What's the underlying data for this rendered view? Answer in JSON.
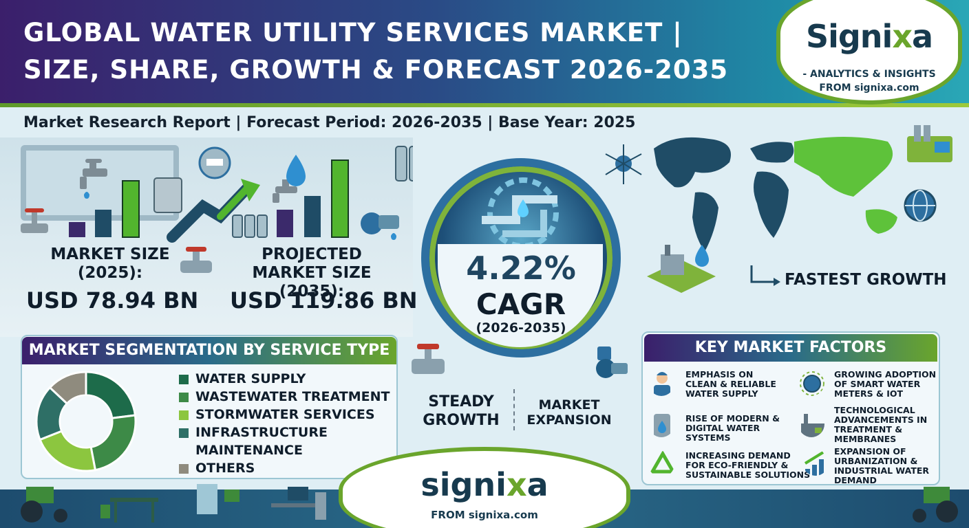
{
  "header": {
    "title_line1": "GLOBAL WATER UTILITY SERVICES MARKET |",
    "title_line2": "SIZE, SHARE, GROWTH & FORECAST 2026-2035"
  },
  "brand": {
    "logo_prefix": "Signi",
    "logo_x": "x",
    "logo_suffix": "a",
    "tagline1": "- ANALYTICS & INSIGHTS",
    "tagline2": "FROM signixa.com"
  },
  "subheader": "Market Research Report |  Forecast Period: 2026-2035  |  Base Year: 2025",
  "market_size": {
    "label_line1": "MARKET SIZE",
    "label_line2": "(2025):",
    "value": "USD 78.94 BN"
  },
  "projected": {
    "label_line1": "PROJECTED",
    "label_line2": "MARKET SIZE (2035):",
    "value": "USD 119.86 BN"
  },
  "cagr": {
    "value": "4.22%",
    "label": "CAGR",
    "period": "(2026-2035)"
  },
  "steady": {
    "line1": "STEADY",
    "line2": "GROWTH"
  },
  "expansion": {
    "line1": "MARKET",
    "line2": "EXPANSION"
  },
  "map": {
    "fastest": "FASTEST GROWTH"
  },
  "segmentation": {
    "title": "MARKET SEGMENTATION BY SERVICE TYPE",
    "items": [
      {
        "label": "WATER SUPPLY",
        "color": "#1d6b4a",
        "share": 0.23
      },
      {
        "label": "WASTEWATER TREATMENT",
        "color": "#3d8a47",
        "share": 0.24
      },
      {
        "label": "STORMWATER SERVICES",
        "color": "#8cc63f",
        "share": 0.22
      },
      {
        "label": "INFRASTRUCTURE",
        "label2": "MAINTENANCE",
        "color": "#2e6f66",
        "share": 0.18
      },
      {
        "label": "OTHERS",
        "color": "#8f8b7e",
        "share": 0.13
      }
    ]
  },
  "key_factors": {
    "title": "KEY MARKET FACTORS",
    "items": [
      {
        "l1": "EMPHASIS ON",
        "l2": "CLEAN & RELIABLE",
        "l3": "WATER SUPPLY",
        "icon": "worker-icon"
      },
      {
        "l1": "GROWING ADOPTION",
        "l2": "OF SMART WATER",
        "l3": "METERS & IOT",
        "icon": "globe-network-icon"
      },
      {
        "l1": "RISE OF MODERN &",
        "l2": "DIGITAL WATER",
        "l3": "SYSTEMS",
        "icon": "water-tank-icon"
      },
      {
        "l1": "TECHNOLOGICAL",
        "l2": "ADVANCEMENTS IN",
        "l3": "TREATMENT &",
        "l4": "MEMBRANES",
        "icon": "factory-icon"
      },
      {
        "l1": "INCREASING DEMAND",
        "l2": "FOR ECO-FRIENDLY &",
        "l3": "SUSTAINABLE SOLUTIONS",
        "icon": "recycle-icon"
      },
      {
        "l1": "EXPANSION OF",
        "l2": "URBANIZATION &",
        "l3": "INDUSTRIAL WATER",
        "l4": "DEMAND",
        "icon": "growth-chart-icon"
      }
    ]
  },
  "footer": {
    "logo_prefix": "signi",
    "logo_x": "x",
    "logo_suffix": "a",
    "from": "FROM signixa.com"
  }
}
